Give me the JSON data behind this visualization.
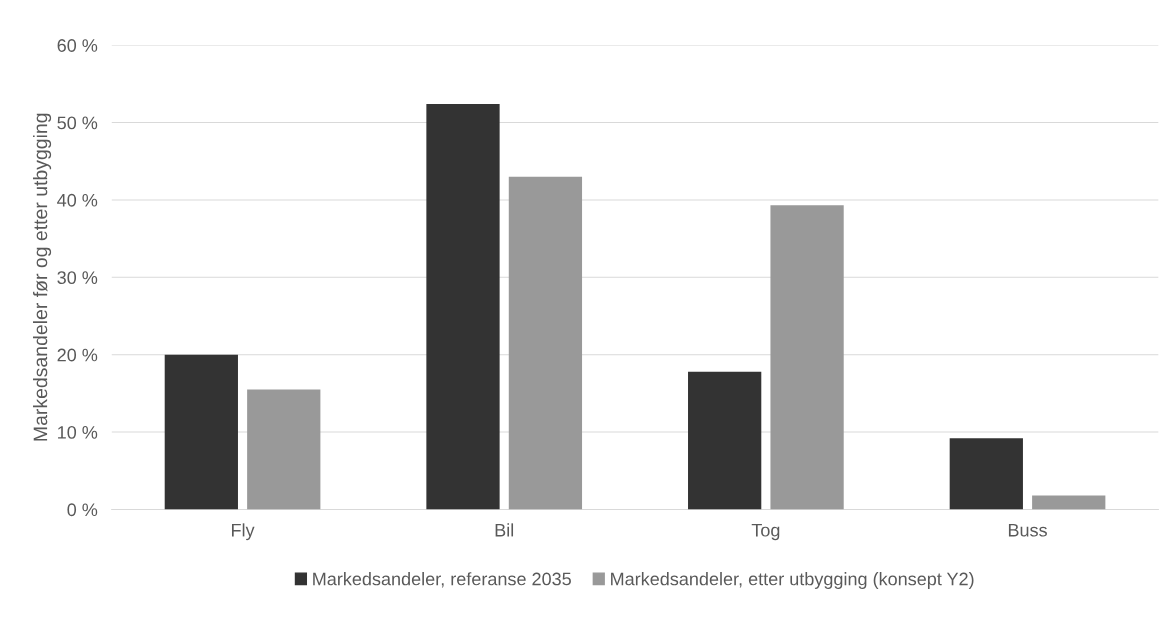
{
  "chart_data": {
    "type": "bar",
    "ylabel": "Markedsandeler før og etter utbygging",
    "categories": [
      "Fly",
      "Bil",
      "Tog",
      "Buss"
    ],
    "series": [
      {
        "name": "Markedsandeler, referanse 2035",
        "color": "#333333",
        "values": [
          20.0,
          52.4,
          17.8,
          9.2
        ]
      },
      {
        "name": "Markedsandeler, etter utbygging (konsept Y2)",
        "color": "#999999",
        "values": [
          15.5,
          43.0,
          39.3,
          1.8
        ]
      }
    ],
    "ylim": [
      0,
      60
    ],
    "yticks": [
      {
        "value": 0,
        "label": "0 %"
      },
      {
        "value": 10,
        "label": "10 %"
      },
      {
        "value": 20,
        "label": "20 %"
      },
      {
        "value": 30,
        "label": "30 %"
      },
      {
        "value": 40,
        "label": "40 %"
      },
      {
        "value": 50,
        "label": "50 %"
      },
      {
        "value": 60,
        "label": "60 %"
      }
    ],
    "grid": "y",
    "legend": "bottom"
  }
}
